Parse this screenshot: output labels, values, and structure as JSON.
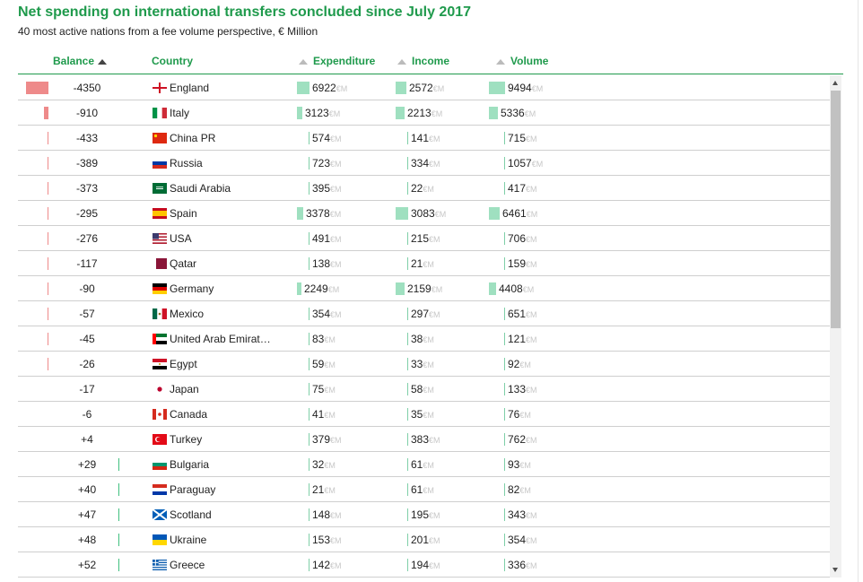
{
  "title": "Net spending on international transfers concluded since July 2017",
  "subtitle": "40 most active nations from a fee volume perspective, € Million",
  "unit_label": "€M",
  "colors": {
    "accent": "#1f9a4c",
    "negative_bar": "#ee8a8a",
    "positive_bar": "#3fbf7f",
    "amount_bar": "#9fe0c0"
  },
  "columns": {
    "balance": "Balance",
    "country": "Country",
    "expenditure": "Expenditure",
    "income": "Income",
    "volume": "Volume",
    "sorted_by": "balance"
  },
  "rows": [
    {
      "balance": "-4350",
      "balance_value": -4350,
      "country": "England",
      "flag": "england",
      "expenditure": 6922,
      "income": 2572,
      "volume": 9494
    },
    {
      "balance": "-910",
      "balance_value": -910,
      "country": "Italy",
      "flag": "italy",
      "expenditure": 3123,
      "income": 2213,
      "volume": 5336
    },
    {
      "balance": "-433",
      "balance_value": -433,
      "country": "China PR",
      "flag": "china",
      "expenditure": 574,
      "income": 141,
      "volume": 715
    },
    {
      "balance": "-389",
      "balance_value": -389,
      "country": "Russia",
      "flag": "russia",
      "expenditure": 723,
      "income": 334,
      "volume": 1057
    },
    {
      "balance": "-373",
      "balance_value": -373,
      "country": "Saudi Arabia",
      "flag": "saudi-arabia",
      "expenditure": 395,
      "income": 22,
      "volume": 417
    },
    {
      "balance": "-295",
      "balance_value": -295,
      "country": "Spain",
      "flag": "spain",
      "expenditure": 3378,
      "income": 3083,
      "volume": 6461
    },
    {
      "balance": "-276",
      "balance_value": -276,
      "country": "USA",
      "flag": "usa",
      "expenditure": 491,
      "income": 215,
      "volume": 706
    },
    {
      "balance": "-117",
      "balance_value": -117,
      "country": "Qatar",
      "flag": "qatar",
      "expenditure": 138,
      "income": 21,
      "volume": 159
    },
    {
      "balance": "-90",
      "balance_value": -90,
      "country": "Germany",
      "flag": "germany",
      "expenditure": 2249,
      "income": 2159,
      "volume": 4408
    },
    {
      "balance": "-57",
      "balance_value": -57,
      "country": "Mexico",
      "flag": "mexico",
      "expenditure": 354,
      "income": 297,
      "volume": 651
    },
    {
      "balance": "-45",
      "balance_value": -45,
      "country": "United Arab Emirat…",
      "flag": "uae",
      "expenditure": 83,
      "income": 38,
      "volume": 121
    },
    {
      "balance": "-26",
      "balance_value": -26,
      "country": "Egypt",
      "flag": "egypt",
      "expenditure": 59,
      "income": 33,
      "volume": 92
    },
    {
      "balance": "-17",
      "balance_value": -17,
      "country": "Japan",
      "flag": "japan",
      "expenditure": 75,
      "income": 58,
      "volume": 133
    },
    {
      "balance": "-6",
      "balance_value": -6,
      "country": "Canada",
      "flag": "canada",
      "expenditure": 41,
      "income": 35,
      "volume": 76
    },
    {
      "balance": "+4",
      "balance_value": 4,
      "country": "Turkey",
      "flag": "turkey",
      "expenditure": 379,
      "income": 383,
      "volume": 762
    },
    {
      "balance": "+29",
      "balance_value": 29,
      "country": "Bulgaria",
      "flag": "bulgaria",
      "expenditure": 32,
      "income": 61,
      "volume": 93
    },
    {
      "balance": "+40",
      "balance_value": 40,
      "country": "Paraguay",
      "flag": "paraguay",
      "expenditure": 21,
      "income": 61,
      "volume": 82
    },
    {
      "balance": "+47",
      "balance_value": 47,
      "country": "Scotland",
      "flag": "scotland",
      "expenditure": 148,
      "income": 195,
      "volume": 343
    },
    {
      "balance": "+48",
      "balance_value": 48,
      "country": "Ukraine",
      "flag": "ukraine",
      "expenditure": 153,
      "income": 201,
      "volume": 354
    },
    {
      "balance": "+52",
      "balance_value": 52,
      "country": "Greece",
      "flag": "greece",
      "expenditure": 142,
      "income": 194,
      "volume": 336
    }
  ]
}
